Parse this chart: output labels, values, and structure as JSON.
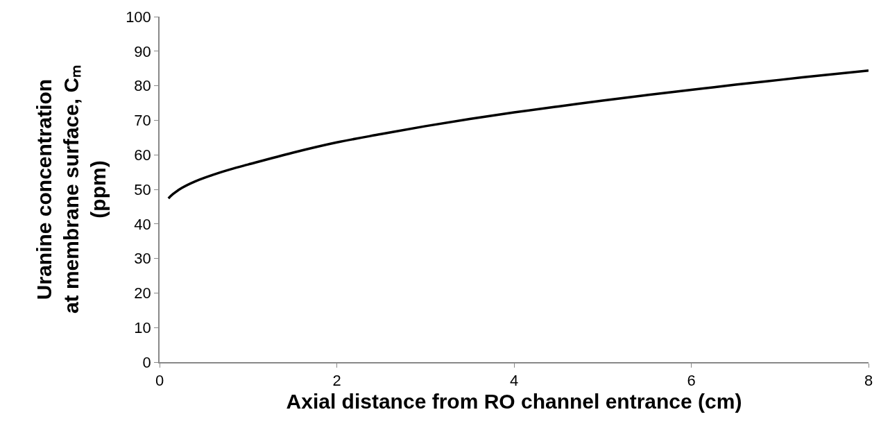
{
  "chart_data": {
    "type": "line",
    "xlabel": "Axial distance from RO channel entrance (cm)",
    "ylabel": "Uranine concentration\nat membrane surface, Cₘ\n(ppm)",
    "x": [
      0.1,
      0.15,
      0.25,
      0.4,
      0.6,
      0.8,
      1,
      1.5,
      2,
      2.5,
      3,
      3.5,
      4,
      4.5,
      5,
      5.5,
      6,
      6.5,
      7,
      7.5,
      8
    ],
    "series": [
      {
        "color": "#000000",
        "values": [
          47.4,
          48.6,
          50.4,
          52.3,
          54.2,
          55.8,
          57.2,
          60.6,
          63.6,
          66.0,
          68.3,
          70.4,
          72.3,
          74.0,
          75.7,
          77.3,
          78.8,
          80.3,
          81.7,
          83.1,
          84.4
        ]
      }
    ],
    "xlim": [
      0,
      8
    ],
    "xticks": [
      0,
      2,
      4,
      6,
      8
    ],
    "ylim": [
      0,
      100
    ],
    "yticks": [
      0,
      10,
      20,
      30,
      40,
      50,
      60,
      70,
      80,
      90,
      100
    ],
    "legend": false,
    "marker": "none",
    "line_style": "solid"
  }
}
